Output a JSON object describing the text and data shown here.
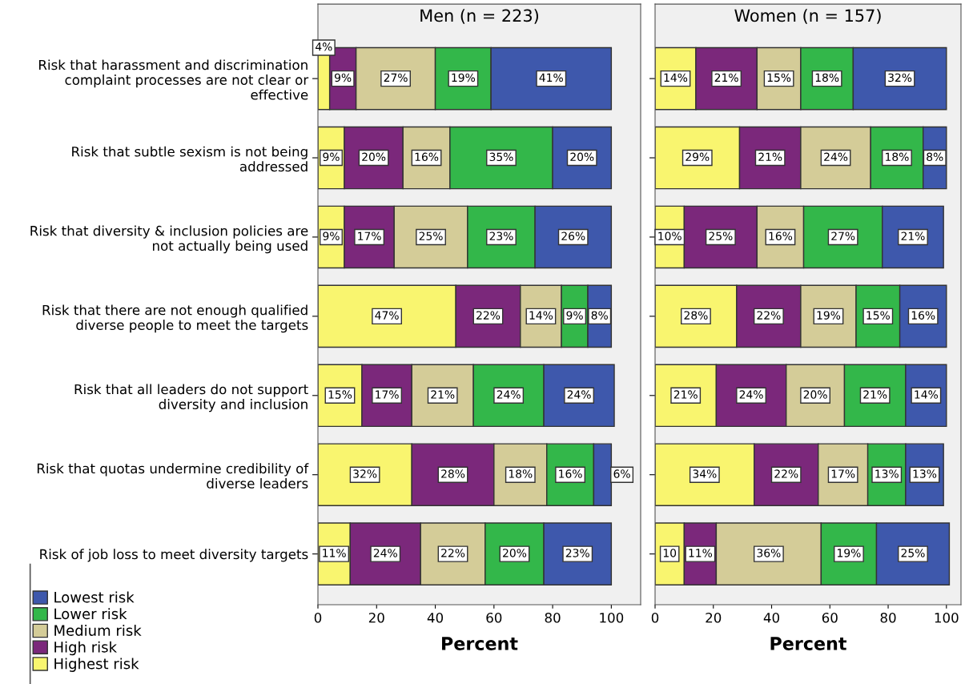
{
  "chart_data": [
    {
      "type": "bar",
      "orientation": "horizontal",
      "stacked": true,
      "title": "Men (n = 223)",
      "xlabel": "Percent",
      "categories": [
        "Risk that harassment and discrimination\ncomplaint processes are not clear or\neffective",
        "Risk that subtle sexism is not being\naddressed",
        "Risk that diversity & inclusion policies are\nnot actually being used",
        "Risk that there are not enough qualified\ndiverse people to meet the targets",
        "Risk that all leaders do not support\ndiversity and inclusion",
        "Risk that quotas undermine credibility of\ndiverse leaders",
        "Risk of job loss to meet diversity targets"
      ],
      "series": [
        {
          "name": "Highest risk",
          "color": "#f9f56f",
          "values": [
            4,
            9,
            9,
            47,
            15,
            32,
            11
          ],
          "value_labels": [
            "4%",
            "9%",
            "9%",
            "47%",
            "15%",
            "32%",
            "11%"
          ]
        },
        {
          "name": "High risk",
          "color": "#7b287b",
          "values": [
            9,
            20,
            17,
            22,
            17,
            28,
            24
          ],
          "value_labels": [
            "9%",
            "20%",
            "17%",
            "22%",
            "17%",
            "28%",
            "24%"
          ]
        },
        {
          "name": "Medium risk",
          "color": "#d4cc98",
          "values": [
            27,
            16,
            25,
            14,
            21,
            18,
            22
          ],
          "value_labels": [
            "27%",
            "16%",
            "25%",
            "14%",
            "21%",
            "18%",
            "22%"
          ]
        },
        {
          "name": "Lower risk",
          "color": "#33b74a",
          "values": [
            19,
            35,
            23,
            9,
            24,
            16,
            20
          ],
          "value_labels": [
            "19%",
            "35%",
            "23%",
            "9%",
            "24%",
            "16%",
            "20%"
          ]
        },
        {
          "name": "Lowest risk",
          "color": "#3e58ac",
          "values": [
            41,
            20,
            26,
            8,
            24,
            6,
            23
          ],
          "value_labels": [
            "41%",
            "20%",
            "26%",
            "8%",
            "24%",
            "6%",
            "23%"
          ]
        }
      ],
      "xlim": [
        0,
        110
      ],
      "xticks": [
        0,
        20,
        40,
        60,
        80,
        100
      ],
      "legend": "bottom left",
      "grid": false
    },
    {
      "type": "bar",
      "orientation": "horizontal",
      "stacked": true,
      "title": "Women (n = 157)",
      "xlabel": "Percent",
      "tick_labels": "x",
      "categories": [
        null,
        null,
        null,
        null,
        null,
        null,
        null
      ],
      "series": [
        {
          "color": "#f9f56f",
          "values": [
            14,
            29,
            10,
            28,
            21,
            34,
            10
          ],
          "value_labels": [
            "14%",
            "29%",
            "10%",
            "28%",
            "21%",
            "34%",
            "10"
          ]
        },
        {
          "color": "#7b287b",
          "values": [
            21,
            21,
            25,
            22,
            24,
            22,
            11
          ],
          "value_labels": [
            "21%",
            "21%",
            "25%",
            "22%",
            "24%",
            "22%",
            "11%"
          ]
        },
        {
          "color": "#d4cc98",
          "values": [
            15,
            24,
            16,
            19,
            20,
            17,
            36
          ],
          "value_labels": [
            "15%",
            "24%",
            "16%",
            "19%",
            "20%",
            "17%",
            "36%"
          ]
        },
        {
          "color": "#33b74a",
          "values": [
            18,
            18,
            27,
            15,
            21,
            13,
            19
          ],
          "value_labels": [
            "18%",
            "18%",
            "27%",
            "15%",
            "21%",
            "13%",
            "19%"
          ]
        },
        {
          "color": "#3e58ac",
          "values": [
            32,
            8,
            21,
            16,
            14,
            13,
            25
          ],
          "value_labels": [
            "32%",
            "8%",
            "21%",
            "16%",
            "14%",
            "13%",
            "25%"
          ]
        }
      ],
      "xlim": [
        0,
        105
      ],
      "xticks": [
        0,
        20,
        40,
        60,
        80,
        100
      ],
      "grid": false
    }
  ]
}
